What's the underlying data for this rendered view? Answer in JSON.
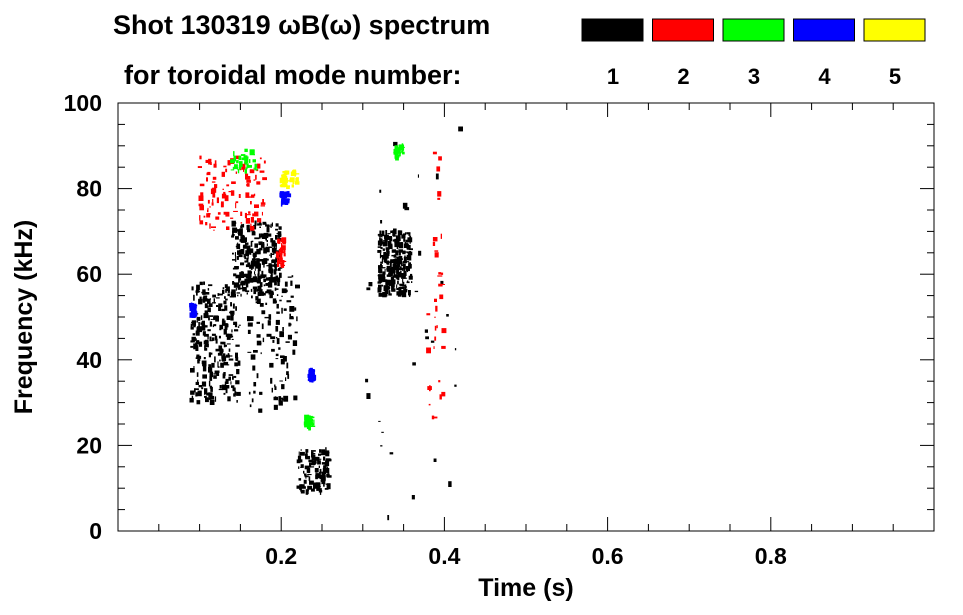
{
  "chart_data": {
    "type": "scatter",
    "title_line1": "Shot 130319 ωB(ω) spectrum",
    "title_line2": "for toroidal mode number:",
    "xlabel": "Time (s)",
    "ylabel": "Frequency (kHz)",
    "xlim": [
      0.0,
      1.0
    ],
    "ylim": [
      0,
      100
    ],
    "x_ticks": [
      0.2,
      0.4,
      0.6,
      0.8
    ],
    "x_tick_labels": [
      "0.2",
      "0.4",
      "0.6",
      "0.8"
    ],
    "y_ticks": [
      0,
      20,
      40,
      60,
      80,
      100
    ],
    "y_tick_labels": [
      "0",
      "20",
      "40",
      "60",
      "80",
      "100"
    ],
    "grid": false,
    "legend": [
      {
        "label": "1",
        "color": "#000000"
      },
      {
        "label": "2",
        "color": "#ff0000"
      },
      {
        "label": "3",
        "color": "#00ff00"
      },
      {
        "label": "4",
        "color": "#0000ff"
      },
      {
        "label": "5",
        "color": "#ffff00"
      }
    ],
    "series": [
      {
        "name": "1",
        "color": "#000000",
        "regions": [
          {
            "t": [
              0.09,
              0.15
            ],
            "f": [
              30,
              58
            ],
            "density": "high"
          },
          {
            "t": [
              0.14,
              0.2
            ],
            "f": [
              55,
              72
            ],
            "density": "high"
          },
          {
            "t": [
              0.16,
              0.22
            ],
            "f": [
              28,
              60
            ],
            "density": "medium"
          },
          {
            "t": [
              0.22,
              0.26
            ],
            "f": [
              9,
              19
            ],
            "density": "medium"
          },
          {
            "t": [
              0.32,
              0.36
            ],
            "f": [
              55,
              70
            ],
            "density": "high"
          },
          {
            "t": [
              0.3,
              0.42
            ],
            "f": [
              1,
              95
            ],
            "density": "low"
          }
        ]
      },
      {
        "name": "2",
        "color": "#ff0000",
        "regions": [
          {
            "t": [
              0.1,
              0.18
            ],
            "f": [
              70,
              88
            ],
            "density": "medium"
          },
          {
            "t": [
              0.195,
              0.205
            ],
            "f": [
              62,
              68
            ],
            "density": "low"
          },
          {
            "t": [
              0.38,
              0.4
            ],
            "f": [
              22,
              90
            ],
            "density": "low"
          }
        ]
      },
      {
        "name": "3",
        "color": "#00ff00",
        "regions": [
          {
            "t": [
              0.14,
              0.17
            ],
            "f": [
              84,
              89
            ],
            "density": "low"
          },
          {
            "t": [
              0.23,
              0.24
            ],
            "f": [
              24,
              27
            ],
            "density": "low"
          },
          {
            "t": [
              0.34,
              0.35
            ],
            "f": [
              87,
              90
            ],
            "density": "low"
          }
        ]
      },
      {
        "name": "4",
        "color": "#0000ff",
        "regions": [
          {
            "t": [
              0.09,
              0.095
            ],
            "f": [
              50,
              53
            ],
            "density": "low"
          },
          {
            "t": [
              0.2,
              0.21
            ],
            "f": [
              76,
              79
            ],
            "density": "low"
          },
          {
            "t": [
              0.235,
              0.24
            ],
            "f": [
              35,
              38
            ],
            "density": "low"
          }
        ]
      },
      {
        "name": "5",
        "color": "#ffff00",
        "regions": [
          {
            "t": [
              0.2,
              0.22
            ],
            "f": [
              80,
              84
            ],
            "density": "low"
          }
        ]
      }
    ]
  }
}
